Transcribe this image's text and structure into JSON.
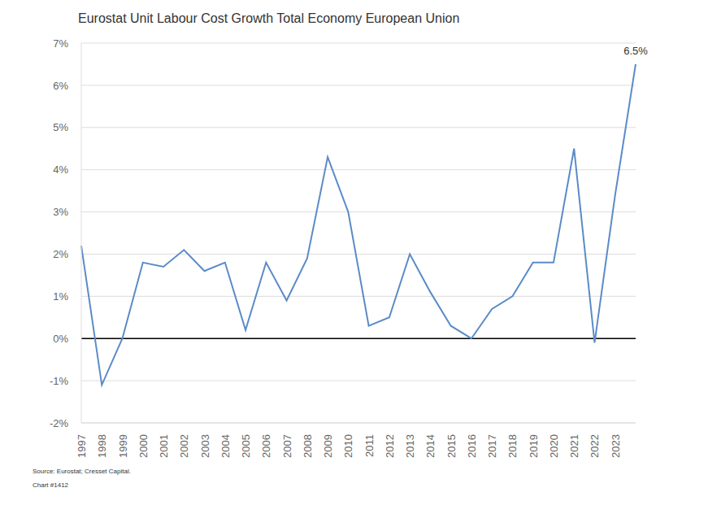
{
  "chart_data": {
    "type": "line",
    "title": "Eurostat Unit Labour Cost Growth Total Economy European Union",
    "categories": [
      "1997",
      "1998",
      "1999",
      "2000",
      "2001",
      "2002",
      "2003",
      "2004",
      "2005",
      "2006",
      "2007",
      "2008",
      "2009",
      "2010",
      "2011",
      "2012",
      "2013",
      "2014",
      "2015",
      "2016",
      "2017",
      "2018",
      "2019",
      "2020",
      "2021",
      "2022",
      "2023",
      null
    ],
    "values": [
      2.2,
      -1.1,
      0.0,
      1.8,
      1.7,
      2.1,
      1.6,
      1.8,
      0.2,
      1.8,
      0.9,
      1.9,
      4.3,
      3.0,
      0.3,
      0.5,
      2.0,
      1.1,
      0.3,
      0.0,
      0.7,
      1.0,
      1.8,
      1.8,
      4.5,
      -0.1,
      3.4,
      6.5
    ],
    "color": "#5b8bc7",
    "ylim": [
      -2,
      7
    ],
    "yticks": [
      {
        "value": -2,
        "label": "-2%"
      },
      {
        "value": -1,
        "label": "-1%"
      },
      {
        "value": 0,
        "label": "0%"
      },
      {
        "value": 1,
        "label": "1%"
      },
      {
        "value": 2,
        "label": "2%"
      },
      {
        "value": 3,
        "label": "3%"
      },
      {
        "value": 4,
        "label": "4%"
      },
      {
        "value": 5,
        "label": "5%"
      },
      {
        "value": 6,
        "label": "6%"
      },
      {
        "value": 7,
        "label": "7%"
      }
    ],
    "grid": true,
    "annotation": "6.5%",
    "source": "Source: Eurostat; Cresset Capital.",
    "chart_number": "Chart #1412"
  }
}
